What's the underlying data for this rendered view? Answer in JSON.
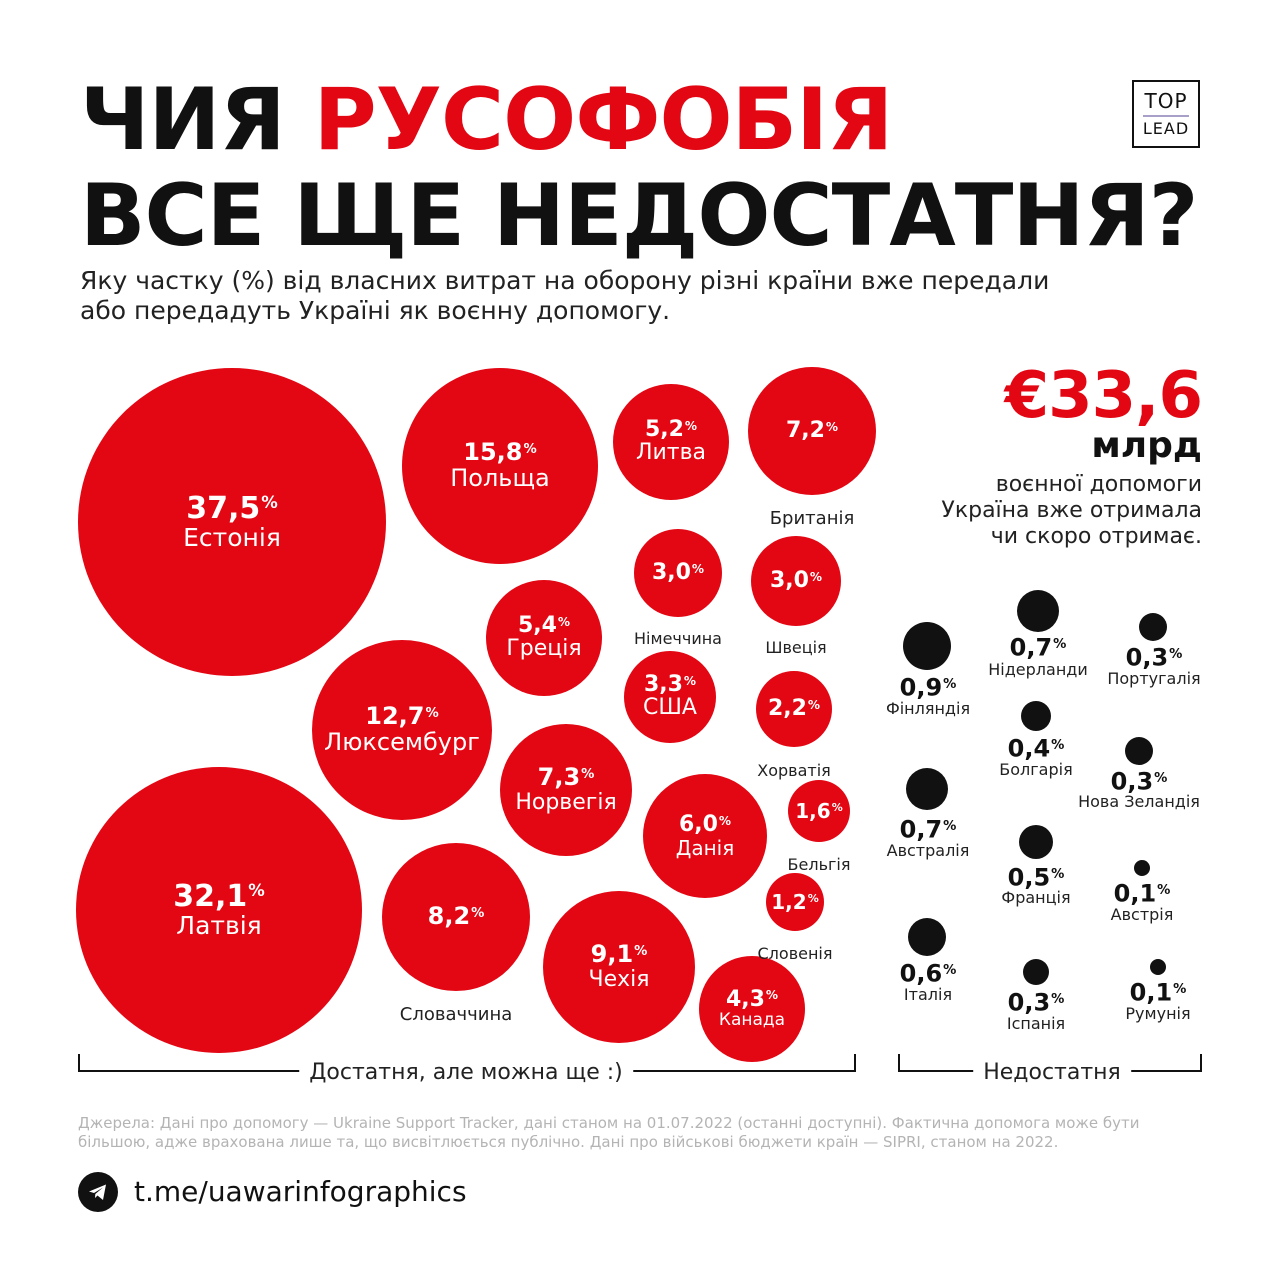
{
  "title": {
    "line1_black": "ЧИЯ ",
    "line1_red": "РУСОФОБІЯ",
    "line2": "ВСЕ ЩЕ НЕДОСТАТНЯ?"
  },
  "logo": {
    "top": "TOP",
    "bottom": "LEAD"
  },
  "subtitle": "Яку частку (%) від власних витрат на оборону різні країни вже передали або передадуть Україні як воєнну допомогу.",
  "summary": {
    "amount": "€33,6",
    "unit": "млрд",
    "text": "воєнної допомоги\nУкраїна вже отримала\nчи скоро отримає."
  },
  "percent_sign": "%",
  "colors": {
    "accent": "#e30613",
    "dark": "#111111"
  },
  "chart_data": {
    "type": "bubble",
    "unit": "%",
    "groups": [
      {
        "name": "Достатня, але можна ще :)",
        "color": "#e30613",
        "items": [
          {
            "country": "Естонія",
            "value": "37,5"
          },
          {
            "country": "Латвія",
            "value": "32,1"
          },
          {
            "country": "Польща",
            "value": "15,8"
          },
          {
            "country": "Люксембург",
            "value": "12,7"
          },
          {
            "country": "Чехія",
            "value": "9,1"
          },
          {
            "country": "Словаччина",
            "value": "8,2"
          },
          {
            "country": "Норвегія",
            "value": "7,3"
          },
          {
            "country": "Британія",
            "value": "7,2"
          },
          {
            "country": "Данія",
            "value": "6,0"
          },
          {
            "country": "Греція",
            "value": "5,4"
          },
          {
            "country": "Литва",
            "value": "5,2"
          },
          {
            "country": "Канада",
            "value": "4,3"
          },
          {
            "country": "США",
            "value": "3,3"
          },
          {
            "country": "Німеччина",
            "value": "3,0"
          },
          {
            "country": "Швеція",
            "value": "3,0"
          },
          {
            "country": "Хорватія",
            "value": "2,2"
          },
          {
            "country": "Бельгія",
            "value": "1,6"
          },
          {
            "country": "Словенія",
            "value": "1,2"
          }
        ]
      },
      {
        "name": "Недостатня",
        "color": "#111111",
        "items": [
          {
            "country": "Фінляндія",
            "value": "0,9"
          },
          {
            "country": "Нідерланди",
            "value": "0,7"
          },
          {
            "country": "Австралія",
            "value": "0,7"
          },
          {
            "country": "Італія",
            "value": "0,6"
          },
          {
            "country": "Франція",
            "value": "0,5"
          },
          {
            "country": "Болгарія",
            "value": "0,4"
          },
          {
            "country": "Португалія",
            "value": "0,3"
          },
          {
            "country": "Нова Зеландія",
            "value": "0,3"
          },
          {
            "country": "Іспанія",
            "value": "0,3"
          },
          {
            "country": "Австрія",
            "value": "0,1"
          },
          {
            "country": "Румунія",
            "value": "0,1"
          }
        ]
      }
    ]
  },
  "sources": "Джерела: Дані про допомогу — Ukraine Support Tracker, дані станом на 01.07.2022 (останні доступні). Фактична допомога може бути більшою, адже врахована лише та, що висвітлюється публічно. Дані про військові бюджети країн — SIPRI, станом на 2022.",
  "footer": {
    "icon": "telegram-icon",
    "link": "t.me/uawarinfographics"
  }
}
